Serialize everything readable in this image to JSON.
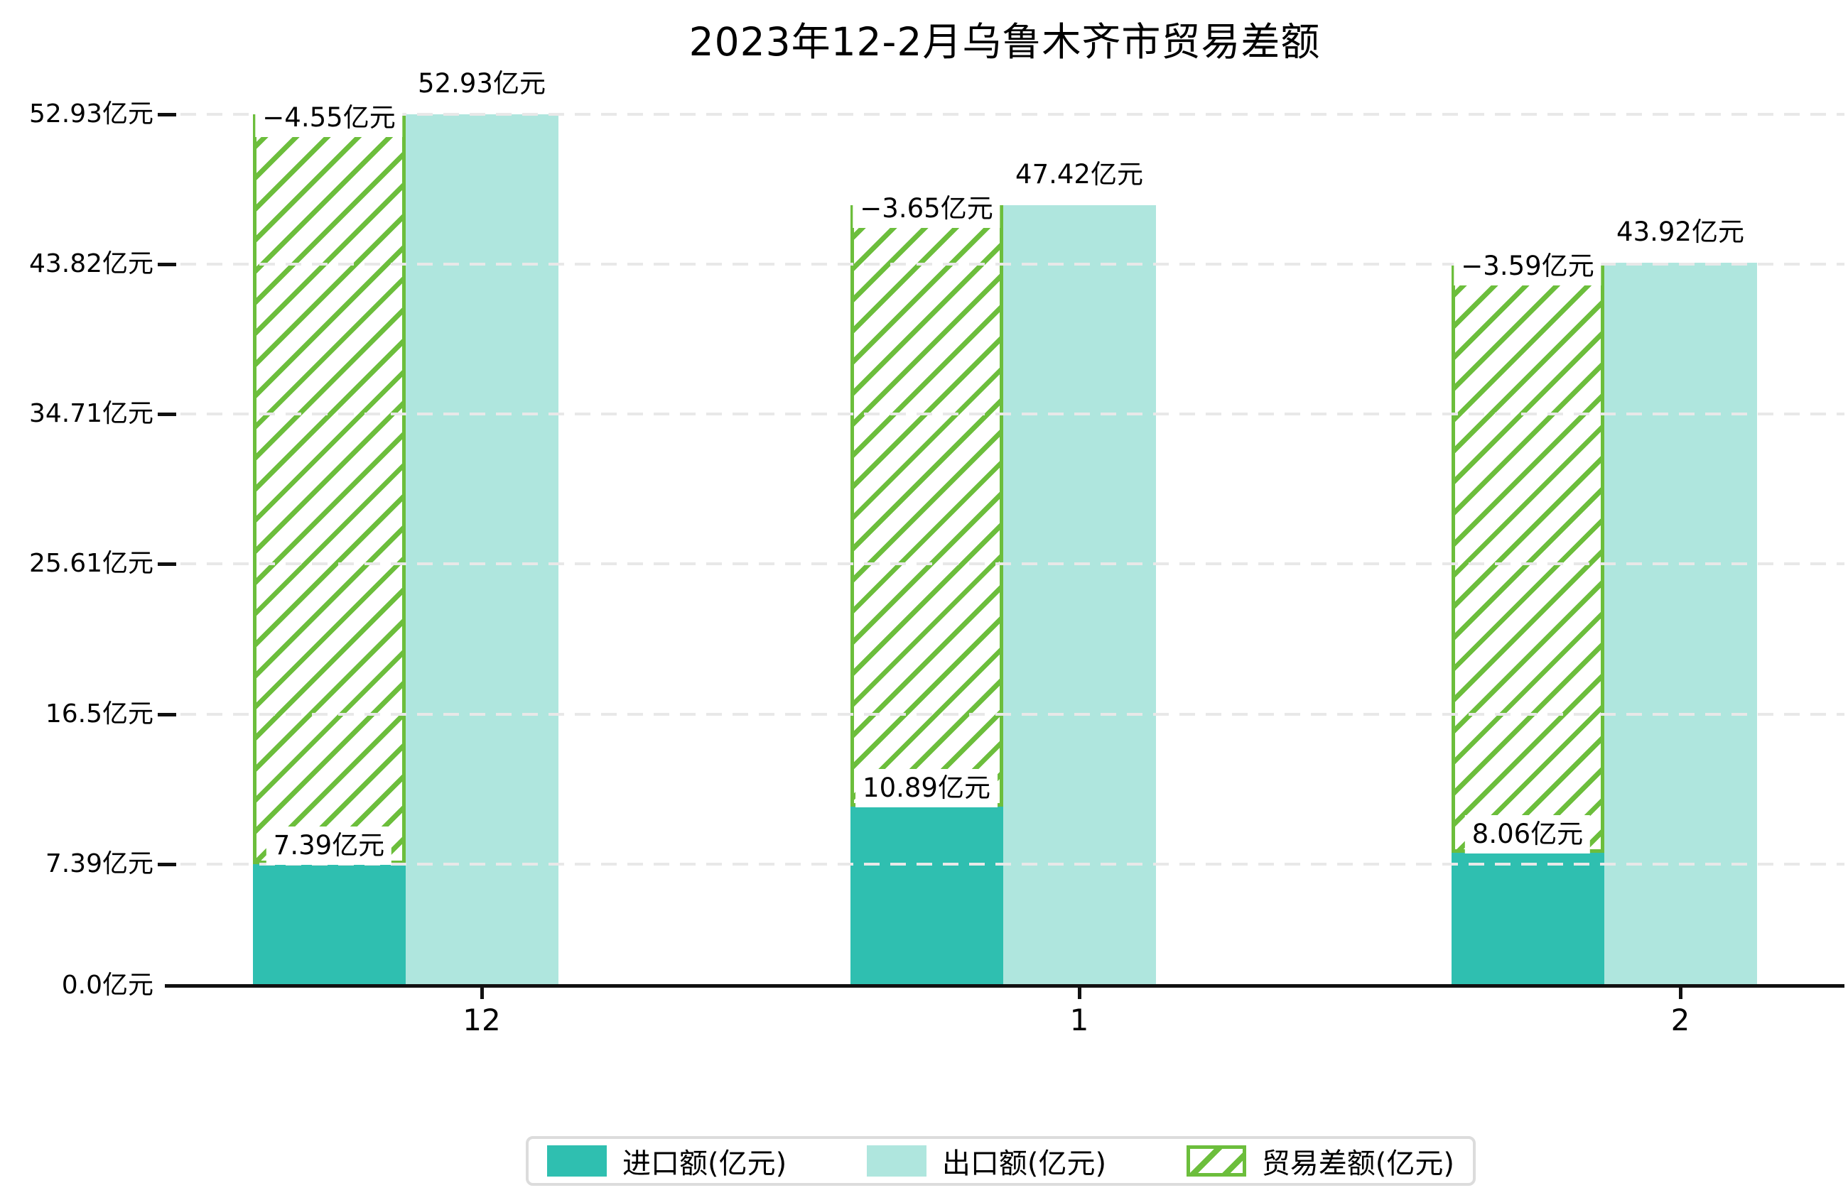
{
  "title": "2023年12-2月乌鲁木齐市贸易差额",
  "unit_suffix": "亿元",
  "chart_data": {
    "type": "bar",
    "categories": [
      "12",
      "1",
      "2"
    ],
    "series": [
      {
        "name": "进口额(亿元)",
        "values": [
          7.39,
          10.89,
          8.06
        ],
        "value_labels": [
          "7.39亿元",
          "10.89亿元",
          "8.06亿元"
        ],
        "color": "#2fbfb0",
        "style": "solid"
      },
      {
        "name": "出口额(亿元)",
        "values": [
          52.93,
          47.42,
          43.92
        ],
        "value_labels": [
          "52.93亿元",
          "47.42亿元",
          "43.92亿元"
        ],
        "color": "#afe6de",
        "style": "solid"
      },
      {
        "name": "贸易差额(亿元)",
        "values": [
          -4.55,
          -3.65,
          -3.59
        ],
        "value_labels": [
          "−4.55亿元",
          "−3.65亿元",
          "−3.59亿元"
        ],
        "color": "#6cbe3c",
        "style": "hatched",
        "bar_span": "drawn from top of import bar up to top of export bar"
      }
    ],
    "y_ticks": [
      {
        "value": 0.0,
        "label": "0.0亿元"
      },
      {
        "value": 7.39,
        "label": "7.39亿元"
      },
      {
        "value": 16.5,
        "label": "16.5亿元"
      },
      {
        "value": 25.61,
        "label": "25.61亿元"
      },
      {
        "value": 34.71,
        "label": "34.71亿元"
      },
      {
        "value": 43.82,
        "label": "43.82亿元"
      },
      {
        "value": 52.93,
        "label": "52.93亿元"
      }
    ],
    "ylim": [
      0,
      52.93
    ],
    "xlabel": "",
    "ylabel": "",
    "grid": "dashed horizontal, drawn above bars",
    "grid_color": "#e8e8e8",
    "axis_color": "#111111",
    "legend_position": "bottom"
  },
  "legend": {
    "items": [
      "进口额(亿元)",
      "出口额(亿元)",
      "贸易差额(亿元)"
    ]
  }
}
